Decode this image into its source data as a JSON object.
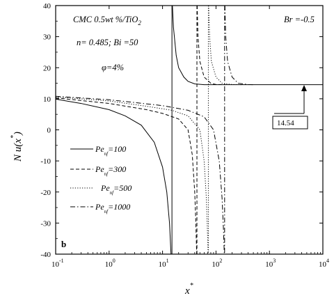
{
  "chart_data": {
    "type": "line",
    "panel_label": "b",
    "annotation_lines": [
      "CMC 0.5wt %/TiO",
      "n= 0.485; Bi =50",
      "φ=4%"
    ],
    "annotation_subscript": "2",
    "br_label": "Br =-0.5",
    "callout_value": "14.54",
    "asymptote": 14.54,
    "xlabel": "x",
    "xlabel_sup": "*",
    "ylabel": "N u(x",
    "ylabel_sup": "*",
    "ylabel_close": ")",
    "x_scale": "log",
    "xlim": [
      0.1,
      10000
    ],
    "ylim": [
      -40,
      40
    ],
    "x_ticks": [
      0.1,
      1,
      10,
      100,
      1000,
      10000
    ],
    "x_tick_labels": [
      [
        "10",
        "-1"
      ],
      [
        "10",
        "0"
      ],
      [
        "10",
        "1"
      ],
      [
        "10",
        "2"
      ],
      [
        "10",
        "3"
      ],
      [
        "10",
        "4"
      ]
    ],
    "y_ticks": [
      -40,
      -30,
      -20,
      -10,
      0,
      10,
      20,
      30,
      40
    ],
    "y_tick_labels": [
      "-40",
      "-30",
      "-20",
      "-10",
      "0",
      "10",
      "20",
      "30",
      "40"
    ],
    "series": [
      {
        "name": "=100",
        "dash": "solid",
        "singularity": 15,
        "left": [
          [
            0.1,
            9.9
          ],
          [
            0.3,
            8.5
          ],
          [
            1,
            6.5
          ],
          [
            2,
            4.5
          ],
          [
            4,
            1.5
          ],
          [
            7,
            -4
          ],
          [
            10,
            -12
          ],
          [
            12,
            -20
          ],
          [
            13.5,
            -30
          ],
          [
            14.4,
            -40
          ]
        ],
        "right": [
          [
            15.3,
            40
          ],
          [
            16,
            33
          ],
          [
            18,
            24
          ],
          [
            20,
            20
          ],
          [
            25,
            17
          ],
          [
            30,
            15.6
          ],
          [
            40,
            14.8
          ],
          [
            60,
            14.54
          ],
          [
            10000,
            14.54
          ]
        ]
      },
      {
        "name": "=300",
        "dash": "dashed",
        "singularity": 44,
        "left": [
          [
            0.1,
            10.3
          ],
          [
            1,
            8.5
          ],
          [
            5,
            6.5
          ],
          [
            10,
            5.3
          ],
          [
            20,
            3.5
          ],
          [
            30,
            0
          ],
          [
            36,
            -8
          ],
          [
            40,
            -20
          ],
          [
            42,
            -30
          ],
          [
            43.5,
            -40
          ]
        ],
        "right": [
          [
            44.5,
            40
          ],
          [
            46,
            30
          ],
          [
            50,
            22
          ],
          [
            60,
            17
          ],
          [
            80,
            15
          ],
          [
            100,
            14.6
          ],
          [
            150,
            14.54
          ]
        ]
      },
      {
        "name": "=500",
        "dash": "dotted",
        "singularity": 72,
        "left": [
          [
            0.1,
            10.6
          ],
          [
            1,
            9.3
          ],
          [
            5,
            7.6
          ],
          [
            15,
            6.3
          ],
          [
            30,
            4.5
          ],
          [
            50,
            0
          ],
          [
            60,
            -10
          ],
          [
            66,
            -22
          ],
          [
            69,
            -32
          ],
          [
            71.3,
            -40
          ]
        ],
        "right": [
          [
            73,
            40
          ],
          [
            76,
            30
          ],
          [
            82,
            22
          ],
          [
            100,
            17
          ],
          [
            130,
            15
          ],
          [
            200,
            14.6
          ],
          [
            300,
            14.54
          ]
        ]
      },
      {
        "name": "=1000",
        "dash": "dashdot",
        "singularity": 145,
        "left": [
          [
            0.1,
            10.8
          ],
          [
            1,
            9.7
          ],
          [
            10,
            7.8
          ],
          [
            30,
            6.3
          ],
          [
            60,
            4.2
          ],
          [
            90,
            0
          ],
          [
            115,
            -10
          ],
          [
            130,
            -22
          ],
          [
            138,
            -32
          ],
          [
            143,
            -40
          ]
        ],
        "right": [
          [
            147,
            40
          ],
          [
            152,
            30
          ],
          [
            165,
            22
          ],
          [
            200,
            17
          ],
          [
            260,
            15
          ],
          [
            400,
            14.6
          ],
          [
            500,
            14.54
          ]
        ]
      }
    ],
    "legend_prefix": "Pe",
    "legend_sub": "nf",
    "legend_position": "lower-left"
  }
}
